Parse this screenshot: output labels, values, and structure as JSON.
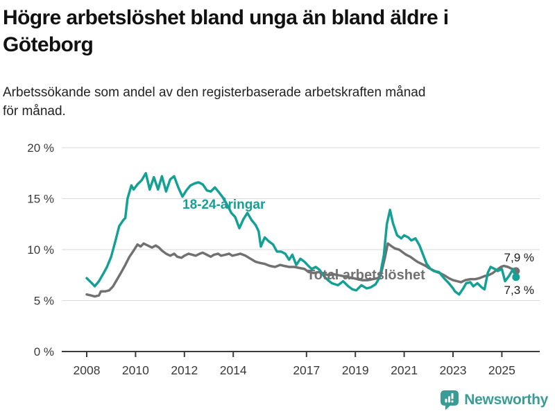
{
  "header": {
    "title": "Högre arbetslöshet bland unga än bland äldre i Göteborg",
    "title_lines": [
      "Högre arbetslöshet bland unga än bland äldre i",
      "Göteborg"
    ],
    "subtitle": "Arbetssökande som andel av den registerbaserade arbetskraften månad för månad.",
    "subtitle_lines": [
      "Arbetssökande som andel av den registerbaserade arbetskraften månad",
      "för månad."
    ]
  },
  "colors": {
    "youth_line": "#14a094",
    "total_line": "#717171",
    "grid": "#d9d9d9",
    "axis": "#3a3a3a",
    "title_text": "#111111",
    "value_label_text": "#1a1a1a",
    "brand": "#3a9d95"
  },
  "footer": {
    "brand": "Newsworthy"
  },
  "chart_data": {
    "type": "line",
    "title": "Högre arbetslöshet bland unga än bland äldre i Göteborg",
    "subtitle": "Arbetssökande som andel av den registerbaserade arbetskraften månad för månad.",
    "unit": "%",
    "grid": true,
    "legend_position": "inline-labels",
    "x_axis": {
      "ticks": [
        2008,
        2010,
        2012,
        2014,
        2017,
        2019,
        2021,
        2023,
        2025
      ],
      "range_years": [
        2008,
        2025.6
      ]
    },
    "y_axis": {
      "tick_values": [
        0,
        5,
        10,
        15,
        20
      ],
      "tick_labels": [
        "0 %",
        "5 %",
        "10 %",
        "15 %",
        "20 %"
      ],
      "range": [
        0,
        20
      ]
    },
    "series": [
      {
        "id": "total",
        "name": "Total arbetslöshet",
        "color": "#717171",
        "end_value": 7.9,
        "end_label": "7,9 %",
        "points": [
          [
            2008.0,
            5.6
          ],
          [
            2008.17,
            5.5
          ],
          [
            2008.33,
            5.4
          ],
          [
            2008.5,
            5.5
          ],
          [
            2008.58,
            5.9
          ],
          [
            2008.75,
            5.9
          ],
          [
            2008.92,
            6.0
          ],
          [
            2009.08,
            6.4
          ],
          [
            2009.25,
            7.1
          ],
          [
            2009.42,
            7.8
          ],
          [
            2009.58,
            8.5
          ],
          [
            2009.75,
            9.3
          ],
          [
            2009.92,
            9.9
          ],
          [
            2010.08,
            10.5
          ],
          [
            2010.21,
            10.3
          ],
          [
            2010.33,
            10.6
          ],
          [
            2010.5,
            10.4
          ],
          [
            2010.67,
            10.2
          ],
          [
            2010.83,
            10.4
          ],
          [
            2010.96,
            10.2
          ],
          [
            2011.08,
            9.9
          ],
          [
            2011.25,
            9.6
          ],
          [
            2011.42,
            9.4
          ],
          [
            2011.58,
            9.6
          ],
          [
            2011.71,
            9.3
          ],
          [
            2011.88,
            9.2
          ],
          [
            2012.0,
            9.4
          ],
          [
            2012.17,
            9.6
          ],
          [
            2012.33,
            9.5
          ],
          [
            2012.46,
            9.4
          ],
          [
            2012.63,
            9.6
          ],
          [
            2012.75,
            9.7
          ],
          [
            2012.92,
            9.5
          ],
          [
            2013.08,
            9.3
          ],
          [
            2013.21,
            9.5
          ],
          [
            2013.38,
            9.6
          ],
          [
            2013.5,
            9.4
          ],
          [
            2013.67,
            9.5
          ],
          [
            2013.83,
            9.6
          ],
          [
            2013.96,
            9.4
          ],
          [
            2014.13,
            9.5
          ],
          [
            2014.29,
            9.6
          ],
          [
            2014.5,
            9.4
          ],
          [
            2014.71,
            9.1
          ],
          [
            2014.92,
            8.8
          ],
          [
            2015.08,
            8.7
          ],
          [
            2015.29,
            8.6
          ],
          [
            2015.5,
            8.4
          ],
          [
            2015.71,
            8.3
          ],
          [
            2015.92,
            8.5
          ],
          [
            2016.08,
            8.4
          ],
          [
            2016.29,
            8.3
          ],
          [
            2016.5,
            8.3
          ],
          [
            2016.71,
            8.2
          ],
          [
            2016.92,
            8.1
          ],
          [
            2017.08,
            7.8
          ],
          [
            2017.29,
            7.7
          ],
          [
            2017.5,
            7.8
          ],
          [
            2017.71,
            7.6
          ],
          [
            2017.92,
            7.5
          ],
          [
            2018.08,
            7.6
          ],
          [
            2018.29,
            7.5
          ],
          [
            2018.5,
            7.4
          ],
          [
            2018.71,
            7.3
          ],
          [
            2018.92,
            7.2
          ],
          [
            2019.08,
            7.1
          ],
          [
            2019.29,
            7.0
          ],
          [
            2019.5,
            7.0
          ],
          [
            2019.71,
            7.1
          ],
          [
            2019.92,
            7.2
          ],
          [
            2020.04,
            7.5
          ],
          [
            2020.21,
            9.2
          ],
          [
            2020.33,
            10.6
          ],
          [
            2020.5,
            10.3
          ],
          [
            2020.63,
            10.1
          ],
          [
            2020.79,
            10.0
          ],
          [
            2020.96,
            9.7
          ],
          [
            2021.08,
            9.5
          ],
          [
            2021.25,
            9.3
          ],
          [
            2021.42,
            9.0
          ],
          [
            2021.54,
            8.8
          ],
          [
            2021.71,
            8.6
          ],
          [
            2021.88,
            8.4
          ],
          [
            2022.0,
            8.2
          ],
          [
            2022.17,
            8.0
          ],
          [
            2022.33,
            7.8
          ],
          [
            2022.46,
            7.7
          ],
          [
            2022.63,
            7.5
          ],
          [
            2022.83,
            7.2
          ],
          [
            2023.0,
            7.0
          ],
          [
            2023.17,
            6.9
          ],
          [
            2023.33,
            6.8
          ],
          [
            2023.5,
            7.0
          ],
          [
            2023.71,
            7.1
          ],
          [
            2023.92,
            7.1
          ],
          [
            2024.08,
            7.2
          ],
          [
            2024.29,
            7.4
          ],
          [
            2024.46,
            7.5
          ],
          [
            2024.63,
            7.7
          ],
          [
            2024.79,
            8.0
          ],
          [
            2024.96,
            8.3
          ],
          [
            2025.08,
            8.4
          ],
          [
            2025.25,
            8.3
          ],
          [
            2025.42,
            8.1
          ],
          [
            2025.58,
            7.9
          ]
        ]
      },
      {
        "id": "youth",
        "name": "18-24-åringar",
        "color": "#14a094",
        "end_value": 7.3,
        "end_label": "7,3 %",
        "points": [
          [
            2008.0,
            7.2
          ],
          [
            2008.17,
            6.8
          ],
          [
            2008.33,
            6.4
          ],
          [
            2008.5,
            6.9
          ],
          [
            2008.67,
            7.6
          ],
          [
            2008.83,
            8.3
          ],
          [
            2009.0,
            9.3
          ],
          [
            2009.17,
            10.8
          ],
          [
            2009.33,
            12.3
          ],
          [
            2009.5,
            12.9
          ],
          [
            2009.58,
            13.1
          ],
          [
            2009.67,
            15.0
          ],
          [
            2009.83,
            16.3
          ],
          [
            2009.92,
            15.9
          ],
          [
            2010.08,
            16.4
          ],
          [
            2010.25,
            16.8
          ],
          [
            2010.42,
            17.5
          ],
          [
            2010.58,
            15.9
          ],
          [
            2010.75,
            17.1
          ],
          [
            2010.92,
            15.9
          ],
          [
            2011.08,
            17.2
          ],
          [
            2011.25,
            15.7
          ],
          [
            2011.42,
            16.9
          ],
          [
            2011.58,
            17.2
          ],
          [
            2011.75,
            16.1
          ],
          [
            2011.92,
            15.2
          ],
          [
            2012.08,
            15.8
          ],
          [
            2012.25,
            16.3
          ],
          [
            2012.42,
            16.5
          ],
          [
            2012.58,
            16.6
          ],
          [
            2012.75,
            16.4
          ],
          [
            2012.92,
            15.8
          ],
          [
            2013.08,
            15.7
          ],
          [
            2013.25,
            16.1
          ],
          [
            2013.42,
            15.6
          ],
          [
            2013.58,
            15.1
          ],
          [
            2013.75,
            14.4
          ],
          [
            2013.92,
            13.6
          ],
          [
            2014.08,
            13.2
          ],
          [
            2014.25,
            12.1
          ],
          [
            2014.42,
            13.0
          ],
          [
            2014.58,
            13.6
          ],
          [
            2014.75,
            12.9
          ],
          [
            2014.92,
            12.4
          ],
          [
            2015.04,
            11.8
          ],
          [
            2015.13,
            10.3
          ],
          [
            2015.29,
            11.2
          ],
          [
            2015.46,
            10.8
          ],
          [
            2015.63,
            10.5
          ],
          [
            2015.79,
            9.8
          ],
          [
            2015.96,
            9.8
          ],
          [
            2016.13,
            9.6
          ],
          [
            2016.29,
            9.0
          ],
          [
            2016.42,
            9.5
          ],
          [
            2016.58,
            8.5
          ],
          [
            2016.75,
            9.1
          ],
          [
            2016.92,
            8.8
          ],
          [
            2017.08,
            8.4
          ],
          [
            2017.21,
            8.1
          ],
          [
            2017.38,
            8.3
          ],
          [
            2017.54,
            8.0
          ],
          [
            2017.71,
            7.4
          ],
          [
            2017.88,
            7.0
          ],
          [
            2018.04,
            6.7
          ],
          [
            2018.29,
            6.5
          ],
          [
            2018.5,
            6.9
          ],
          [
            2018.71,
            6.4
          ],
          [
            2018.88,
            6.1
          ],
          [
            2019.04,
            6.0
          ],
          [
            2019.25,
            6.5
          ],
          [
            2019.46,
            6.2
          ],
          [
            2019.63,
            6.3
          ],
          [
            2019.83,
            6.6
          ],
          [
            2020.0,
            7.3
          ],
          [
            2020.17,
            9.5
          ],
          [
            2020.29,
            12.5
          ],
          [
            2020.42,
            13.9
          ],
          [
            2020.54,
            12.6
          ],
          [
            2020.71,
            11.4
          ],
          [
            2020.88,
            11.1
          ],
          [
            2021.0,
            11.4
          ],
          [
            2021.17,
            11.2
          ],
          [
            2021.29,
            10.9
          ],
          [
            2021.46,
            11.1
          ],
          [
            2021.63,
            10.4
          ],
          [
            2021.79,
            9.4
          ],
          [
            2021.92,
            8.6
          ],
          [
            2022.08,
            8.1
          ],
          [
            2022.21,
            7.9
          ],
          [
            2022.42,
            7.8
          ],
          [
            2022.63,
            7.2
          ],
          [
            2022.83,
            6.7
          ],
          [
            2023.0,
            6.2
          ],
          [
            2023.08,
            5.9
          ],
          [
            2023.25,
            5.6
          ],
          [
            2023.42,
            6.2
          ],
          [
            2023.54,
            6.7
          ],
          [
            2023.71,
            6.8
          ],
          [
            2023.83,
            6.4
          ],
          [
            2024.0,
            6.7
          ],
          [
            2024.17,
            6.3
          ],
          [
            2024.29,
            6.1
          ],
          [
            2024.42,
            7.7
          ],
          [
            2024.54,
            8.3
          ],
          [
            2024.71,
            8.1
          ],
          [
            2024.83,
            7.9
          ],
          [
            2025.0,
            8.1
          ],
          [
            2025.13,
            6.9
          ],
          [
            2025.29,
            7.4
          ],
          [
            2025.46,
            8.1
          ],
          [
            2025.58,
            7.3
          ]
        ]
      }
    ]
  }
}
